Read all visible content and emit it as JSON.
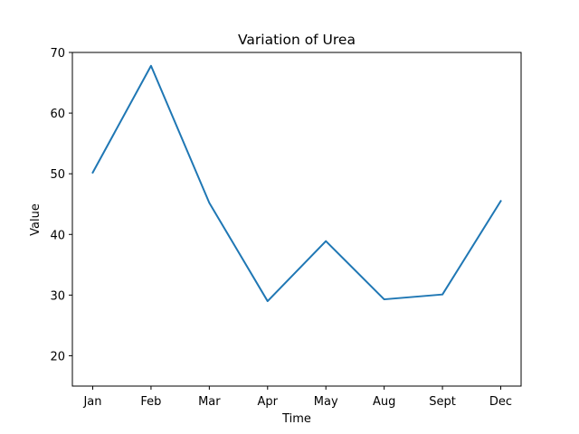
{
  "chart_data": {
    "type": "line",
    "title": "Variation of Urea",
    "xlabel": "Time",
    "ylabel": "Value",
    "categories": [
      "Jan",
      "Feb",
      "Mar",
      "Apr",
      "May",
      "Aug",
      "Sept",
      "Dec"
    ],
    "series": [
      {
        "values": [
          50.2,
          67.8,
          45.2,
          29.0,
          38.9,
          29.3,
          30.1,
          45.5
        ],
        "color": "#1f77b4"
      }
    ],
    "ylim": [
      15,
      70
    ],
    "yticks": [
      20,
      30,
      40,
      50,
      60,
      70
    ],
    "grid": false,
    "legend": "none"
  }
}
